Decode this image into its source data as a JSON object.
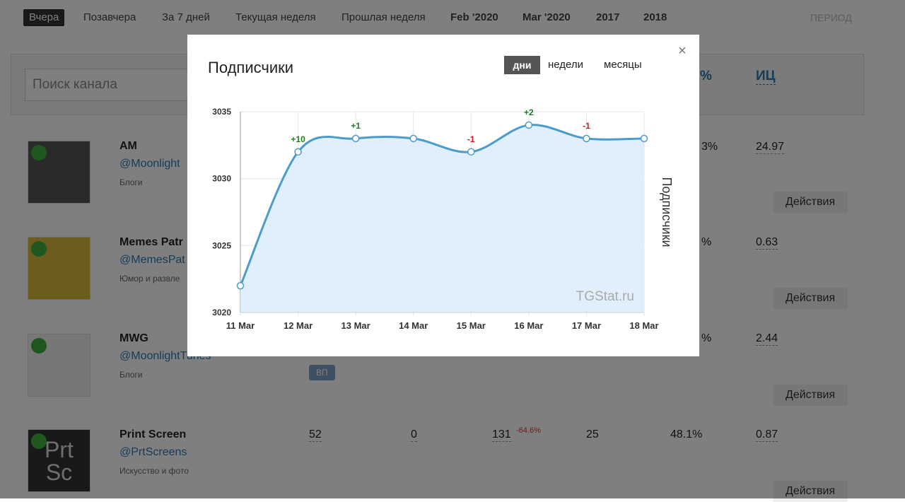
{
  "nav": {
    "items": [
      "Вчера",
      "Позавчера",
      "За 7 дней",
      "Текущая неделя",
      "Прошлая неделя",
      "Feb '2020",
      "Mar '2020",
      "2017",
      "2018"
    ],
    "period": "ПЕРИОД"
  },
  "search": {
    "placeholder": "Поиск канала",
    "columns": [
      "%",
      "ИЦ"
    ]
  },
  "channels": [
    {
      "name": "AM",
      "handle": "@Moonlight",
      "category": "Блоги",
      "er": "3%",
      "ic": "24.97",
      "action": "Действия"
    },
    {
      "name": "Memes Patr",
      "handle": "@MemesPat",
      "category": "Юмор и развле",
      "er": "%",
      "ic": "0.63",
      "action": "Действия"
    },
    {
      "name": "MWG",
      "handle": "@MoonlightTunes",
      "category": "Блоги",
      "badge": "ВП",
      "er": "%",
      "ic": "2.44",
      "action": "Действия"
    },
    {
      "name": "Print Screen",
      "handle": "@PrtScreens",
      "category": "Искусство и фото",
      "avatar_text": [
        "Prt",
        "Sc"
      ],
      "stats": [
        "52",
        "0",
        "131",
        "-64.6%",
        "25",
        "48.1%"
      ],
      "ic": "0.87",
      "action": "Действия"
    }
  ],
  "modal": {
    "close": "×",
    "tabs": [
      "дни",
      "недели",
      "месяцы"
    ],
    "watermark": "TGStat.ru",
    "chart_data": {
      "type": "line",
      "title": "Подписчики",
      "y_label": "Подписчики",
      "categories": [
        "11 Mar",
        "12 Mar",
        "13 Mar",
        "14 Mar",
        "15 Mar",
        "16 Mar",
        "17 Mar",
        "18 Mar"
      ],
      "values": [
        3022,
        3032,
        3033,
        3033,
        3032,
        3034,
        3033,
        3033
      ],
      "value_labels": [
        null,
        "+10",
        "+1",
        null,
        "-1",
        "+2",
        "-1",
        null
      ],
      "color": "#4b9cc9",
      "fill": "#dcebfc",
      "ylim": [
        3020,
        3035
      ],
      "yticks": [
        3020,
        3025,
        3030,
        3035
      ],
      "grid": true
    }
  }
}
